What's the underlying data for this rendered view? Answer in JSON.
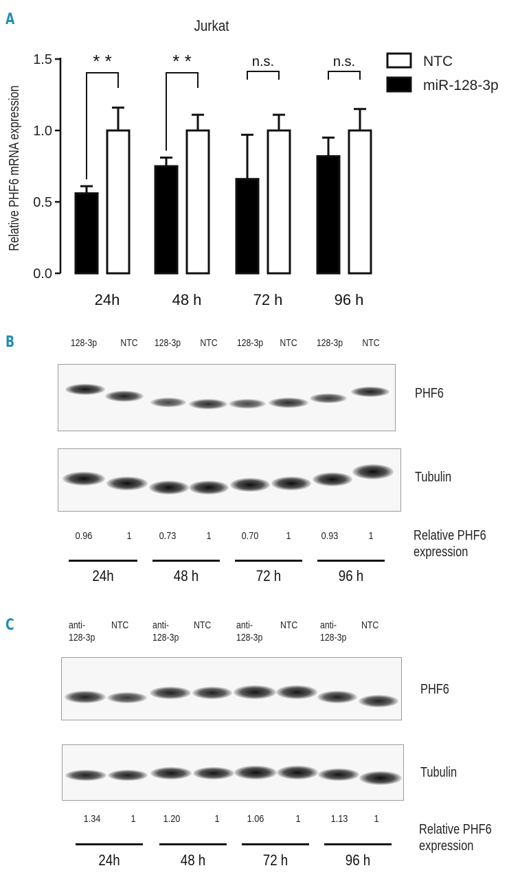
{
  "panels": {
    "a": {
      "letter": "A",
      "title": "Jurkat",
      "ylabel": "Relative PHF6 mRNA expression",
      "yticks": [
        "0.0",
        "0.5",
        "1.0",
        "1.5"
      ],
      "legend": [
        {
          "label": "NTC",
          "fill": "#ffffff"
        },
        {
          "label": "miR-128-3p",
          "fill": "#000000"
        }
      ],
      "groups": [
        "24h",
        "48 h",
        "72 h",
        "96 h"
      ],
      "significance": [
        "* *",
        "* *",
        "n.s.",
        "n.s."
      ]
    },
    "b": {
      "letter": "B",
      "lanes": [
        "128-3p",
        "NTC",
        "128-3p",
        "NTC",
        "128-3p",
        "NTC",
        "128-3p",
        "NTC"
      ],
      "blots": [
        "PHF6",
        "Tubulin"
      ],
      "ratios": [
        "0.96",
        "1",
        "0.73",
        "1",
        "0.70",
        "1",
        "0.93",
        "1"
      ],
      "ratio_label_line1": "Relative PHF6",
      "ratio_label_line2": "expression",
      "times": [
        "24h",
        "48 h",
        "72 h",
        "96 h"
      ]
    },
    "c": {
      "letter": "C",
      "lanes": [
        {
          "line1": "anti-",
          "line2": "128-3p"
        },
        {
          "line1": "NTC",
          "line2": ""
        },
        {
          "line1": "anti-",
          "line2": "128-3p"
        },
        {
          "line1": "NTC",
          "line2": ""
        },
        {
          "line1": "anti-",
          "line2": "128-3p"
        },
        {
          "line1": "NTC",
          "line2": ""
        },
        {
          "line1": "anti-",
          "line2": "128-3p"
        },
        {
          "line1": "NTC",
          "line2": ""
        }
      ],
      "blots": [
        "PHF6",
        "Tubulin"
      ],
      "ratios": [
        "1.34",
        "1",
        "1.20",
        "1",
        "1.06",
        "1",
        "1.13",
        "1"
      ],
      "ratio_label_line1": "Relative PHF6",
      "ratio_label_line2": "expression",
      "times": [
        "24h",
        "48 h",
        "72 h",
        "96 h"
      ]
    }
  },
  "chart_data": {
    "type": "bar",
    "title": "Jurkat",
    "xlabel": "",
    "ylabel": "Relative PHF6 mRNA expression",
    "ylim": [
      0,
      1.5
    ],
    "categories": [
      "24h",
      "48 h",
      "72 h",
      "96 h"
    ],
    "series": [
      {
        "name": "miR-128-3p",
        "color": "#000000",
        "values": [
          0.56,
          0.75,
          0.66,
          0.82
        ],
        "errors": [
          0.05,
          0.06,
          0.31,
          0.13
        ]
      },
      {
        "name": "NTC",
        "color": "#ffffff",
        "values": [
          1.0,
          1.0,
          1.0,
          1.0
        ],
        "errors": [
          0.16,
          0.11,
          0.11,
          0.15
        ]
      }
    ],
    "annotations": [
      "* *",
      "* *",
      "n.s.",
      "n.s."
    ],
    "legend_position": "top-right",
    "grid": false
  }
}
